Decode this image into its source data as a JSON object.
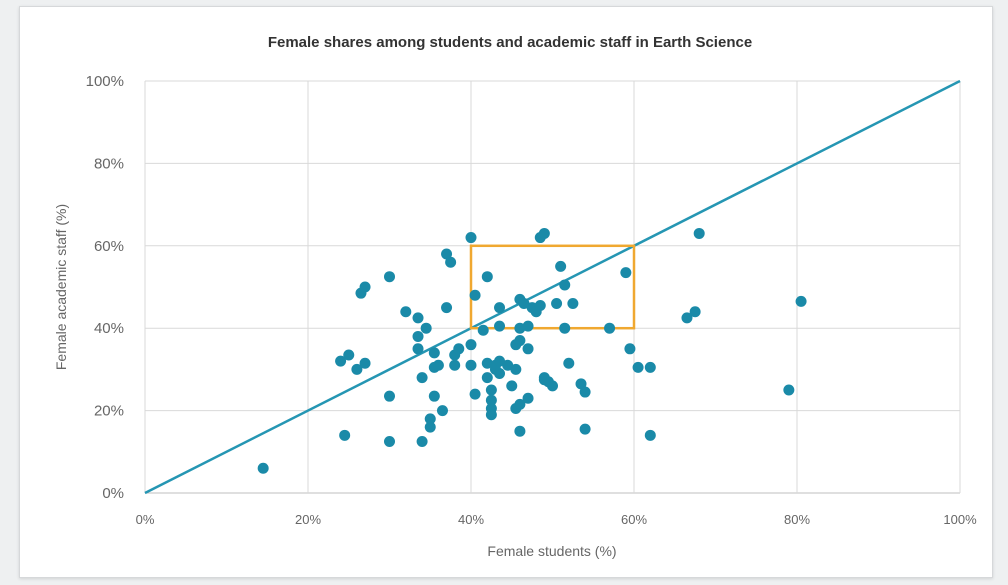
{
  "chart_data": {
    "type": "scatter",
    "title": "Female shares among students and academic staff in Earth Science",
    "xlabel": "Female students (%)",
    "ylabel": "Female academic staff (%)",
    "xlim": [
      0,
      100
    ],
    "ylim": [
      0,
      100
    ],
    "x_ticks": [
      "0%",
      "20%",
      "40%",
      "60%",
      "80%",
      "100%"
    ],
    "y_ticks": [
      "0%",
      "20%",
      "40%",
      "60%",
      "80%",
      "100%"
    ],
    "grid": true,
    "point_color": "#1a8aa8",
    "line_color": "#2596b3",
    "highlight_color": "#f0a830",
    "reference_line": {
      "from": [
        0,
        0
      ],
      "to": [
        100,
        100
      ]
    },
    "highlight_box": {
      "x": [
        40,
        60
      ],
      "y": [
        40,
        60
      ]
    },
    "points": [
      [
        14.5,
        6
      ],
      [
        24.5,
        14
      ],
      [
        24,
        32
      ],
      [
        25,
        33.5
      ],
      [
        26,
        30
      ],
      [
        27,
        31.5
      ],
      [
        26.5,
        48.5
      ],
      [
        27,
        50
      ],
      [
        30,
        12.5
      ],
      [
        30,
        23.5
      ],
      [
        30,
        52.5
      ],
      [
        32,
        44
      ],
      [
        33.5,
        35
      ],
      [
        33.5,
        38
      ],
      [
        33.5,
        42.5
      ],
      [
        34,
        12.5
      ],
      [
        34,
        28
      ],
      [
        34.5,
        40
      ],
      [
        35,
        16
      ],
      [
        35,
        18
      ],
      [
        35.5,
        23.5
      ],
      [
        35.5,
        30.5
      ],
      [
        35.5,
        34
      ],
      [
        36,
        31
      ],
      [
        36.5,
        20
      ],
      [
        37,
        45
      ],
      [
        37,
        58
      ],
      [
        37.5,
        56
      ],
      [
        38,
        31
      ],
      [
        38,
        33.5
      ],
      [
        38.5,
        35
      ],
      [
        40,
        62
      ],
      [
        40,
        36
      ],
      [
        40,
        31
      ],
      [
        40.5,
        24
      ],
      [
        40.5,
        48
      ],
      [
        41.5,
        39.5
      ],
      [
        42,
        28
      ],
      [
        42,
        52.5
      ],
      [
        42,
        31.5
      ],
      [
        42.5,
        19
      ],
      [
        42.5,
        20.5
      ],
      [
        42.5,
        22.5
      ],
      [
        42.5,
        25
      ],
      [
        43,
        30
      ],
      [
        43,
        31
      ],
      [
        43.5,
        32
      ],
      [
        43.5,
        29
      ],
      [
        43.5,
        40.5
      ],
      [
        43.5,
        45
      ],
      [
        44.5,
        31
      ],
      [
        45,
        26
      ],
      [
        45.5,
        20.5
      ],
      [
        45.5,
        30
      ],
      [
        45.5,
        36
      ],
      [
        46,
        15
      ],
      [
        46,
        21.5
      ],
      [
        46,
        37
      ],
      [
        46,
        40
      ],
      [
        46,
        47
      ],
      [
        46.5,
        46
      ],
      [
        47,
        23
      ],
      [
        47,
        40.5
      ],
      [
        47,
        35
      ],
      [
        47.5,
        45
      ],
      [
        48,
        44
      ],
      [
        48.5,
        62
      ],
      [
        49,
        63
      ],
      [
        48.5,
        45.5
      ],
      [
        49,
        27.5
      ],
      [
        49,
        28
      ],
      [
        49.5,
        27
      ],
      [
        50,
        26
      ],
      [
        50.5,
        46
      ],
      [
        51,
        55
      ],
      [
        51.5,
        40
      ],
      [
        51.5,
        50.5
      ],
      [
        52,
        31.5
      ],
      [
        52.5,
        46
      ],
      [
        53.5,
        26.5
      ],
      [
        54,
        24.5
      ],
      [
        54,
        15.5
      ],
      [
        57,
        40
      ],
      [
        59,
        53.5
      ],
      [
        59.5,
        35
      ],
      [
        60.5,
        30.5
      ],
      [
        62,
        30.5
      ],
      [
        62,
        14
      ],
      [
        66.5,
        42.5
      ],
      [
        67.5,
        44
      ],
      [
        68,
        63
      ],
      [
        79,
        25
      ],
      [
        80.5,
        46.5
      ]
    ]
  }
}
